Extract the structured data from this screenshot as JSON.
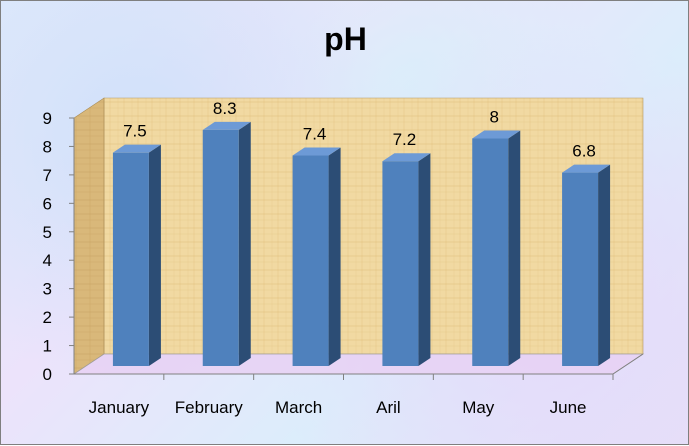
{
  "chart_data": {
    "type": "bar",
    "title": "pH",
    "xlabel": "",
    "ylabel": "",
    "categories": [
      "January",
      "February",
      "March",
      "Aril",
      "May",
      "June"
    ],
    "values": [
      7.5,
      8.3,
      7.4,
      7.2,
      8,
      6.8
    ],
    "data_labels": [
      "7.5",
      "8.3",
      "7.4",
      "7.2",
      "8",
      "6.8"
    ],
    "ylim": [
      0,
      9
    ],
    "yticks": [
      0,
      1,
      2,
      3,
      4,
      5,
      6,
      7,
      8,
      9
    ],
    "grid": false,
    "legend": "none",
    "style": "3d-column",
    "colors": {
      "bar_front": "#4f81bd",
      "bar_side": "#2c4d75",
      "bar_top": "#6d9ad6",
      "wall": "#f2d9a0",
      "floor": "#e8d3f5",
      "frame_border": "#7f7f7f"
    }
  }
}
